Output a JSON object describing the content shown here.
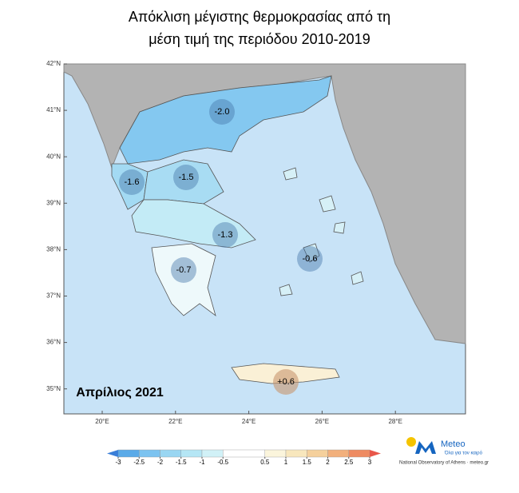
{
  "title": [
    "Απόκλιση μέγιστης θερμοκρασίας από τη",
    "μέση τιμή της περιόδου 2010-2019"
  ],
  "period": "Απρίλιος 2021",
  "lat_ticks": [
    {
      "value": 42,
      "label": "42°N"
    },
    {
      "value": 41,
      "label": "41°N"
    },
    {
      "value": 40,
      "label": "40°N"
    },
    {
      "value": 39,
      "label": "39°N"
    },
    {
      "value": 38,
      "label": "38°N"
    },
    {
      "value": 37,
      "label": "37°N"
    },
    {
      "value": 36,
      "label": "36°N"
    },
    {
      "value": 35,
      "label": "35°N"
    }
  ],
  "lon_ticks": [
    {
      "value": 20,
      "label": "20°E"
    },
    {
      "value": 22,
      "label": "22°E"
    },
    {
      "value": 24,
      "label": "24°E"
    },
    {
      "value": 26,
      "label": "26°E"
    },
    {
      "value": 28,
      "label": "28°E"
    }
  ],
  "regions": [
    {
      "value": -2.0,
      "label": "-2.0",
      "color": "#84c8f0"
    },
    {
      "value": -1.6,
      "label": "-1.6",
      "color": "#a3daf3"
    },
    {
      "value": -1.5,
      "label": "-1.5",
      "color": "#a8dcf3"
    },
    {
      "value": -1.3,
      "label": "-1.3",
      "color": "#c3ebf6"
    },
    {
      "value": -0.7,
      "label": "-0.7",
      "color": "#eef9fb"
    },
    {
      "value": -0.6,
      "label": "-0.6",
      "color": "#d6f0f7"
    },
    {
      "value": 0.6,
      "label": "+0.6",
      "color": "#faf0d6"
    }
  ],
  "colorbar": {
    "ticks": [
      -3,
      -2.5,
      -2,
      -1.5,
      -1,
      -0.5,
      0.5,
      1,
      1.5,
      2,
      2.5,
      3
    ],
    "colors": [
      "#5aaae8",
      "#7cc3f0",
      "#99d6f2",
      "#b5e6f5",
      "#d1f1f7",
      "#ffffff",
      "#fbf5dc",
      "#f8e7bd",
      "#f5d09c",
      "#f2b07c",
      "#ee8b62"
    ],
    "under": "#3a7fd8",
    "over": "#e8574a"
  },
  "logo": {
    "name": "Meteo",
    "tagline": "Όλα για τον καιρό",
    "footer": "National Observatory of Athens · meteo.gr"
  }
}
